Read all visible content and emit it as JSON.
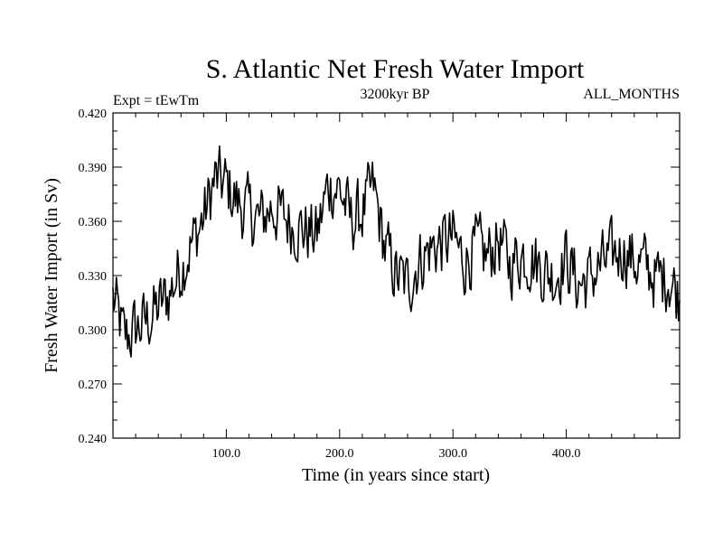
{
  "chart_data": {
    "type": "line",
    "title": "S. Atlantic Net Fresh Water Import",
    "subtitle_left": "Expt = tEwTm",
    "subtitle_center": "3200kyr BP",
    "subtitle_right": "ALL_MONTHS",
    "xlabel": "Time (in years since start)",
    "ylabel": "Fresh Water Import (in Sv)",
    "xlim": [
      0,
      500
    ],
    "ylim": [
      0.24,
      0.42
    ],
    "xticks": [
      100,
      200,
      300,
      400
    ],
    "xtick_labels": [
      "100.0",
      "200.0",
      "300.0",
      "400.0"
    ],
    "yticks": [
      0.24,
      0.27,
      0.3,
      0.33,
      0.36,
      0.39,
      0.42
    ],
    "ytick_labels": [
      "0.240",
      "0.270",
      "0.300",
      "0.330",
      "0.360",
      "0.390",
      "0.420"
    ],
    "grid": false,
    "series": [
      {
        "name": "net fresh water import",
        "color": "#000000",
        "x": [
          0,
          10,
          20,
          30,
          40,
          50,
          60,
          70,
          80,
          90,
          100,
          110,
          120,
          130,
          140,
          150,
          160,
          170,
          180,
          190,
          200,
          210,
          220,
          230,
          240,
          250,
          260,
          270,
          280,
          290,
          300,
          310,
          320,
          330,
          340,
          350,
          360,
          370,
          380,
          390,
          400,
          410,
          420,
          430,
          440,
          450,
          460,
          470,
          480,
          490,
          500
        ],
        "values": [
          0.318,
          0.295,
          0.3,
          0.305,
          0.312,
          0.32,
          0.335,
          0.348,
          0.362,
          0.383,
          0.38,
          0.37,
          0.365,
          0.36,
          0.368,
          0.363,
          0.358,
          0.355,
          0.352,
          0.38,
          0.378,
          0.36,
          0.365,
          0.378,
          0.345,
          0.33,
          0.325,
          0.338,
          0.345,
          0.348,
          0.35,
          0.338,
          0.345,
          0.34,
          0.35,
          0.336,
          0.342,
          0.34,
          0.333,
          0.33,
          0.34,
          0.325,
          0.328,
          0.335,
          0.34,
          0.345,
          0.338,
          0.335,
          0.328,
          0.33,
          0.318
        ]
      }
    ]
  }
}
